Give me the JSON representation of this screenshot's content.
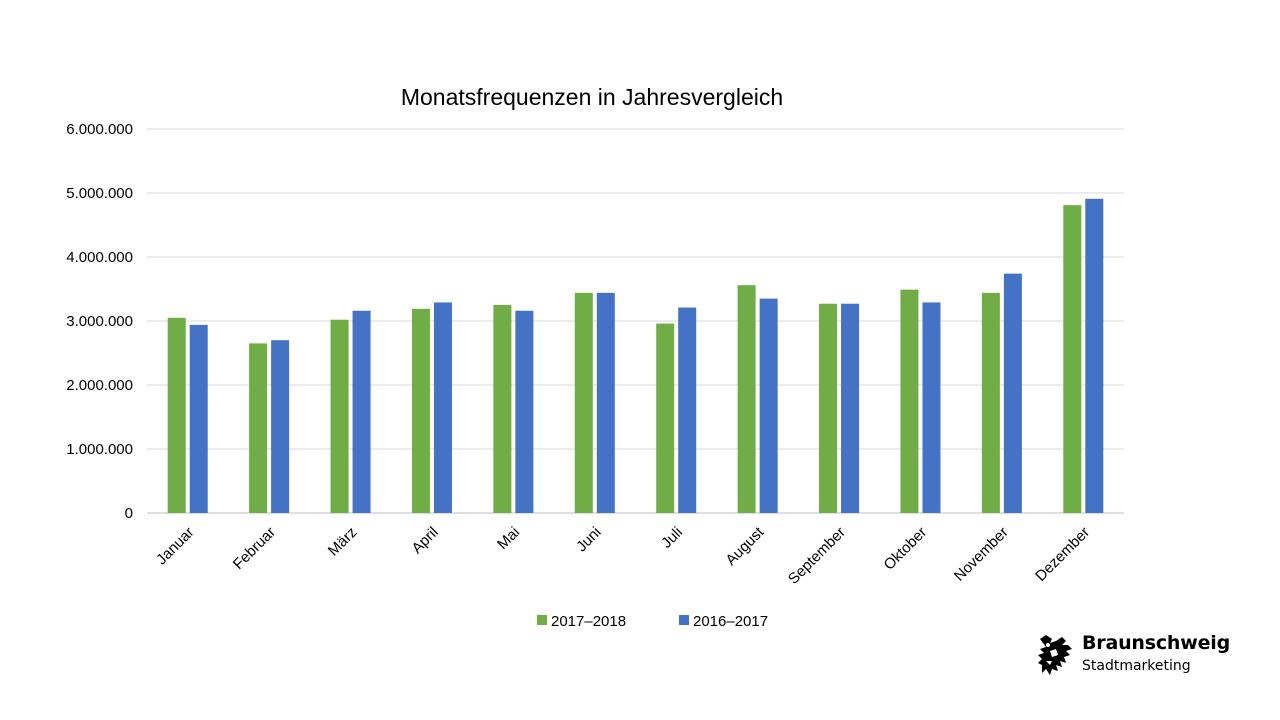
{
  "chart_data": {
    "type": "bar",
    "title": "Monatsfrequenzen in Jahresvergleich",
    "categories": [
      "Januar",
      "Februar",
      "März",
      "April",
      "Mai",
      "Juni",
      "Juli",
      "August",
      "September",
      "Oktober",
      "November",
      "Dezember"
    ],
    "series": [
      {
        "name": "2017–2018",
        "color": "#70ad47",
        "values": [
          3050000,
          2650000,
          3020000,
          3190000,
          3250000,
          3440000,
          2960000,
          3560000,
          3270000,
          3490000,
          3440000,
          4810000
        ]
      },
      {
        "name": "2016–2017",
        "color": "#4472c4",
        "values": [
          2940000,
          2700000,
          3160000,
          3290000,
          3160000,
          3440000,
          3210000,
          3350000,
          3270000,
          3290000,
          3740000,
          4910000
        ]
      }
    ],
    "yticks": [
      "0",
      "1.000.000",
      "2.000.000",
      "3.000.000",
      "4.000.000",
      "5.000.000",
      "6.000.000"
    ],
    "ylim": [
      0,
      6000000
    ],
    "grid": true,
    "legend_position": "bottom"
  },
  "logo": {
    "name": "Braunschweig",
    "subtitle": "Stadtmarketing"
  }
}
